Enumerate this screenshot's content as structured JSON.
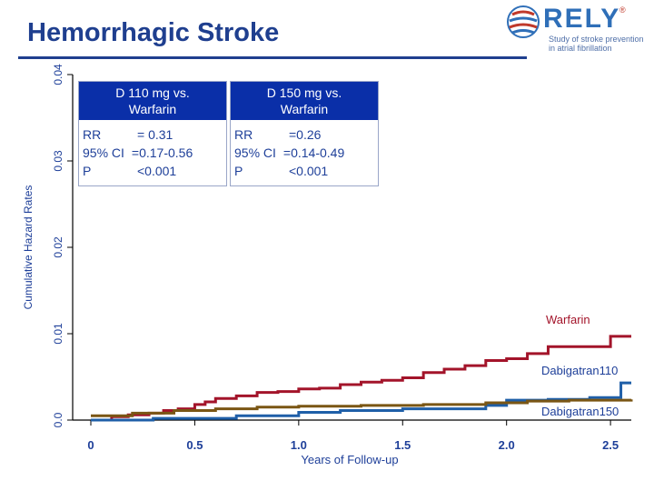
{
  "header": {
    "title": "Hemorrhagic Stroke",
    "logo_text": "RELY",
    "logo_reg": "®",
    "logo_tagline_1": "Study of stroke prevention",
    "logo_tagline_2": "in atrial fibrillation"
  },
  "boxes": [
    {
      "heading_1": "D 110 mg vs.",
      "heading_2": "Warfarin",
      "rows": [
        {
          "label": "RR",
          "value": "= 0.31"
        },
        {
          "label": "95% CI",
          "value": "=0.17-0.56"
        },
        {
          "label": "P",
          "value": "<0.001"
        }
      ]
    },
    {
      "heading_1": "D 150 mg vs.",
      "heading_2": "Warfarin",
      "rows": [
        {
          "label": "RR",
          "value": "=0.26"
        },
        {
          "label": "95% CI",
          "value": "=0.14-0.49"
        },
        {
          "label": "P",
          "value": "<0.001"
        }
      ]
    }
  ],
  "colors": {
    "warfarin": "#a3142a",
    "dabigatran110": "#1f5fa8",
    "dabigatran150": "#7a5614",
    "axis": "#000000",
    "label": "#1e3f99"
  },
  "chart_data": {
    "type": "line",
    "xlabel": "Years of Follow-up",
    "ylabel": "Cumulative Hazard Rates",
    "xlim": [
      0,
      2.6
    ],
    "ylim": [
      0,
      0.04
    ],
    "xticks": [
      0,
      0.5,
      1.0,
      1.5,
      2.0,
      2.5
    ],
    "xtick_labels": [
      "0",
      "0.5",
      "1.0",
      "1.5",
      "2.0",
      "2.5"
    ],
    "yticks": [
      0,
      0.01,
      0.02,
      0.03,
      0.04
    ],
    "ytick_labels": [
      "0.0",
      "0.01",
      "0.02",
      "0.03",
      "0.04"
    ],
    "series": [
      {
        "name": "Warfarin",
        "label": "Warfarin",
        "step": true,
        "x": [
          0,
          0.1,
          0.18,
          0.28,
          0.35,
          0.42,
          0.5,
          0.55,
          0.6,
          0.7,
          0.8,
          0.9,
          1.0,
          1.1,
          1.2,
          1.3,
          1.4,
          1.5,
          1.6,
          1.7,
          1.8,
          1.9,
          2.0,
          2.1,
          2.2,
          2.3,
          2.45,
          2.5,
          2.6
        ],
        "values": [
          0.0,
          0.0004,
          0.0006,
          0.0008,
          0.0011,
          0.0013,
          0.0018,
          0.0021,
          0.0025,
          0.0028,
          0.0032,
          0.0033,
          0.0036,
          0.0037,
          0.0041,
          0.0044,
          0.0046,
          0.0049,
          0.0055,
          0.0059,
          0.0063,
          0.0069,
          0.0071,
          0.0077,
          0.0085,
          0.0085,
          0.0085,
          0.0097,
          0.0097
        ]
      },
      {
        "name": "Dabigatran110",
        "label": "Dabigatran110",
        "step": true,
        "x": [
          0,
          0.3,
          0.7,
          1.0,
          1.2,
          1.5,
          1.9,
          2.0,
          2.2,
          2.4,
          2.55,
          2.6
        ],
        "values": [
          0.0,
          0.0002,
          0.0005,
          0.0009,
          0.0011,
          0.0013,
          0.0017,
          0.0023,
          0.0024,
          0.0026,
          0.0043,
          0.0043
        ]
      },
      {
        "name": "Dabigatran150",
        "label": "Dabigatran150",
        "step": true,
        "x": [
          0,
          0.2,
          0.4,
          0.6,
          0.8,
          1.0,
          1.3,
          1.6,
          1.9,
          2.1,
          2.3,
          2.6
        ],
        "values": [
          0.0005,
          0.0008,
          0.0011,
          0.0013,
          0.0015,
          0.0016,
          0.0017,
          0.0018,
          0.002,
          0.0022,
          0.0023,
          0.0024
        ]
      }
    ]
  }
}
